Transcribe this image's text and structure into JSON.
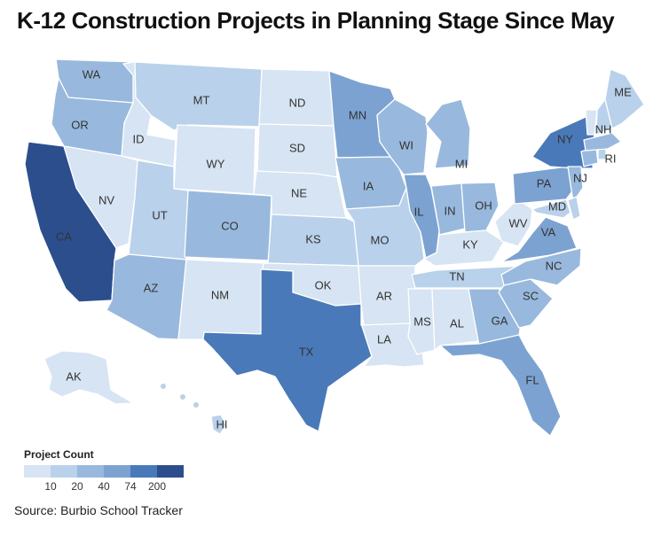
{
  "title": "K-12 Construction Projects in Planning Stage Since May",
  "source": "Source: Burbio School Tracker",
  "legend": {
    "title": "Project Count",
    "ticks": [
      "10",
      "20",
      "40",
      "74",
      "200"
    ],
    "colors": [
      "#d6e4f3",
      "#b9d1ea",
      "#98b9dd",
      "#7ca2d1",
      "#4a79b9",
      "#2c4e8c"
    ]
  },
  "states": [
    {
      "abbr": "WA",
      "bin": 2
    },
    {
      "abbr": "OR",
      "bin": 2
    },
    {
      "abbr": "CA",
      "bin": 5
    },
    {
      "abbr": "ID",
      "bin": 0
    },
    {
      "abbr": "NV",
      "bin": 0
    },
    {
      "abbr": "MT",
      "bin": 1
    },
    {
      "abbr": "WY",
      "bin": 0
    },
    {
      "abbr": "UT",
      "bin": 1
    },
    {
      "abbr": "AZ",
      "bin": 2
    },
    {
      "abbr": "CO",
      "bin": 2
    },
    {
      "abbr": "NM",
      "bin": 0
    },
    {
      "abbr": "ND",
      "bin": 0
    },
    {
      "abbr": "SD",
      "bin": 0
    },
    {
      "abbr": "NE",
      "bin": 0
    },
    {
      "abbr": "KS",
      "bin": 1
    },
    {
      "abbr": "OK",
      "bin": 0
    },
    {
      "abbr": "TX",
      "bin": 4
    },
    {
      "abbr": "MN",
      "bin": 3
    },
    {
      "abbr": "IA",
      "bin": 2
    },
    {
      "abbr": "MO",
      "bin": 1
    },
    {
      "abbr": "AR",
      "bin": 0
    },
    {
      "abbr": "LA",
      "bin": 0
    },
    {
      "abbr": "WI",
      "bin": 2
    },
    {
      "abbr": "IL",
      "bin": 3
    },
    {
      "abbr": "MI",
      "bin": 2
    },
    {
      "abbr": "IN",
      "bin": 2
    },
    {
      "abbr": "OH",
      "bin": 2
    },
    {
      "abbr": "KY",
      "bin": 0
    },
    {
      "abbr": "TN",
      "bin": 1
    },
    {
      "abbr": "MS",
      "bin": 0
    },
    {
      "abbr": "AL",
      "bin": 0
    },
    {
      "abbr": "GA",
      "bin": 2
    },
    {
      "abbr": "FL",
      "bin": 3
    },
    {
      "abbr": "SC",
      "bin": 2
    },
    {
      "abbr": "NC",
      "bin": 2
    },
    {
      "abbr": "VA",
      "bin": 3
    },
    {
      "abbr": "WV",
      "bin": 0
    },
    {
      "abbr": "PA",
      "bin": 3
    },
    {
      "abbr": "NY",
      "bin": 4
    },
    {
      "abbr": "NJ",
      "bin": 2
    },
    {
      "abbr": "MD",
      "bin": 1
    },
    {
      "abbr": "DE",
      "bin": 1
    },
    {
      "abbr": "CT",
      "bin": 2
    },
    {
      "abbr": "RI",
      "bin": 1
    },
    {
      "abbr": "MA",
      "bin": 2
    },
    {
      "abbr": "VT",
      "bin": 0
    },
    {
      "abbr": "NH",
      "bin": 1
    },
    {
      "abbr": "ME",
      "bin": 1
    },
    {
      "abbr": "AK",
      "bin": 0
    },
    {
      "abbr": "HI",
      "bin": 1
    }
  ]
}
